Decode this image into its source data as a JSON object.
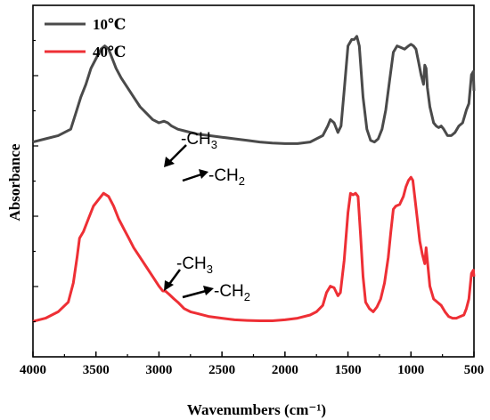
{
  "chart_data": {
    "type": "line",
    "xlabel": "Wavenumbers (cm⁻¹)",
    "ylabel": "Absorbance",
    "xlim": [
      4000,
      500
    ],
    "x_reversed": true,
    "y_tick_labels_shown": false,
    "xticks": [
      4000,
      3500,
      3000,
      2500,
      2000,
      1500,
      1000,
      500
    ],
    "xtick_labels": [
      "4000",
      "3500",
      "3000",
      "2500",
      "2000",
      "1500",
      "1000",
      "500"
    ],
    "ylim": [
      0,
      100
    ],
    "legend_position": "top-left",
    "series": [
      {
        "name": "10℃",
        "color": "#4a4a4a",
        "points": [
          [
            4000,
            64
          ],
          [
            3900,
            65
          ],
          [
            3800,
            66
          ],
          [
            3700,
            68
          ],
          [
            3660,
            73
          ],
          [
            3620,
            78
          ],
          [
            3580,
            82
          ],
          [
            3540,
            87
          ],
          [
            3500,
            90
          ],
          [
            3460,
            93
          ],
          [
            3430,
            94
          ],
          [
            3400,
            93
          ],
          [
            3370,
            90
          ],
          [
            3340,
            87
          ],
          [
            3300,
            84
          ],
          [
            3250,
            81
          ],
          [
            3200,
            78
          ],
          [
            3150,
            75
          ],
          [
            3100,
            73
          ],
          [
            3050,
            71
          ],
          [
            3000,
            70
          ],
          [
            2960,
            70.5
          ],
          [
            2930,
            70
          ],
          [
            2900,
            69
          ],
          [
            2850,
            68
          ],
          [
            2800,
            67.5
          ],
          [
            2700,
            66.5
          ],
          [
            2600,
            66
          ],
          [
            2500,
            65.5
          ],
          [
            2400,
            65
          ],
          [
            2300,
            64.5
          ],
          [
            2200,
            64
          ],
          [
            2100,
            63.7
          ],
          [
            2000,
            63.5
          ],
          [
            1900,
            63.5
          ],
          [
            1800,
            64
          ],
          [
            1750,
            65
          ],
          [
            1700,
            66
          ],
          [
            1660,
            69
          ],
          [
            1640,
            71
          ],
          [
            1610,
            70
          ],
          [
            1580,
            67
          ],
          [
            1555,
            69
          ],
          [
            1530,
            80
          ],
          [
            1500,
            94
          ],
          [
            1470,
            96
          ],
          [
            1450,
            96
          ],
          [
            1430,
            97
          ],
          [
            1410,
            94
          ],
          [
            1380,
            78
          ],
          [
            1350,
            68
          ],
          [
            1320,
            64.5
          ],
          [
            1290,
            64
          ],
          [
            1260,
            65
          ],
          [
            1230,
            68
          ],
          [
            1200,
            74
          ],
          [
            1170,
            83
          ],
          [
            1140,
            92
          ],
          [
            1110,
            94
          ],
          [
            1080,
            93.5
          ],
          [
            1050,
            93
          ],
          [
            1020,
            94
          ],
          [
            1000,
            94.5
          ],
          [
            980,
            94
          ],
          [
            960,
            93
          ],
          [
            940,
            89
          ],
          [
            920,
            85
          ],
          [
            900,
            82
          ],
          [
            890,
            88
          ],
          [
            880,
            87
          ],
          [
            870,
            81
          ],
          [
            850,
            75
          ],
          [
            820,
            70
          ],
          [
            800,
            69
          ],
          [
            780,
            68.5
          ],
          [
            760,
            69
          ],
          [
            740,
            68
          ],
          [
            710,
            66
          ],
          [
            680,
            66
          ],
          [
            650,
            67
          ],
          [
            620,
            69
          ],
          [
            590,
            70
          ],
          [
            560,
            74
          ],
          [
            540,
            76
          ],
          [
            520,
            85
          ],
          [
            505,
            86
          ],
          [
            500,
            80
          ]
        ]
      },
      {
        "name": "40℃",
        "color": "#ee2f35",
        "points": [
          [
            4000,
            8
          ],
          [
            3900,
            9
          ],
          [
            3800,
            11
          ],
          [
            3720,
            14
          ],
          [
            3680,
            20
          ],
          [
            3650,
            28
          ],
          [
            3630,
            34
          ],
          [
            3600,
            36
          ],
          [
            3560,
            40
          ],
          [
            3520,
            44
          ],
          [
            3480,
            46
          ],
          [
            3440,
            48
          ],
          [
            3400,
            47
          ],
          [
            3360,
            44
          ],
          [
            3320,
            40
          ],
          [
            3280,
            37
          ],
          [
            3240,
            34
          ],
          [
            3200,
            31
          ],
          [
            3150,
            28
          ],
          [
            3100,
            25
          ],
          [
            3050,
            22
          ],
          [
            3000,
            19
          ],
          [
            2970,
            17.5
          ],
          [
            2950,
            17.5
          ],
          [
            2920,
            16.5
          ],
          [
            2880,
            15
          ],
          [
            2850,
            14
          ],
          [
            2800,
            12
          ],
          [
            2750,
            11
          ],
          [
            2700,
            10.5
          ],
          [
            2600,
            9.5
          ],
          [
            2500,
            9
          ],
          [
            2400,
            8.5
          ],
          [
            2300,
            8.3
          ],
          [
            2200,
            8.2
          ],
          [
            2100,
            8.2
          ],
          [
            2000,
            8.5
          ],
          [
            1900,
            9
          ],
          [
            1800,
            10
          ],
          [
            1750,
            11
          ],
          [
            1700,
            13
          ],
          [
            1670,
            17
          ],
          [
            1640,
            19
          ],
          [
            1610,
            18.5
          ],
          [
            1580,
            16
          ],
          [
            1560,
            17
          ],
          [
            1530,
            27
          ],
          [
            1500,
            42
          ],
          [
            1480,
            48
          ],
          [
            1460,
            47.5
          ],
          [
            1440,
            48
          ],
          [
            1420,
            47
          ],
          [
            1400,
            35
          ],
          [
            1380,
            22
          ],
          [
            1360,
            14
          ],
          [
            1330,
            12
          ],
          [
            1300,
            11
          ],
          [
            1270,
            12.5
          ],
          [
            1240,
            15
          ],
          [
            1210,
            20
          ],
          [
            1180,
            28
          ],
          [
            1160,
            36
          ],
          [
            1140,
            43
          ],
          [
            1120,
            44
          ],
          [
            1090,
            44.5
          ],
          [
            1060,
            47
          ],
          [
            1040,
            50
          ],
          [
            1020,
            52
          ],
          [
            1000,
            53
          ],
          [
            985,
            52
          ],
          [
            970,
            47
          ],
          [
            950,
            40
          ],
          [
            930,
            33
          ],
          [
            910,
            29
          ],
          [
            890,
            26
          ],
          [
            880,
            31
          ],
          [
            870,
            27
          ],
          [
            850,
            19
          ],
          [
            820,
            15
          ],
          [
            790,
            14
          ],
          [
            760,
            13
          ],
          [
            730,
            11
          ],
          [
            700,
            9.5
          ],
          [
            670,
            9
          ],
          [
            640,
            9
          ],
          [
            610,
            9.5
          ],
          [
            580,
            10
          ],
          [
            560,
            12
          ],
          [
            540,
            15
          ],
          [
            520,
            23
          ],
          [
            505,
            24
          ],
          [
            500,
            22
          ]
        ]
      }
    ],
    "annotations": [
      {
        "label": "-CH",
        "subscript": "3"
      },
      {
        "label": "-CH",
        "subscript": "2"
      },
      {
        "label": "-CH",
        "subscript": "3"
      },
      {
        "label": "-CH",
        "subscript": "2"
      }
    ]
  }
}
